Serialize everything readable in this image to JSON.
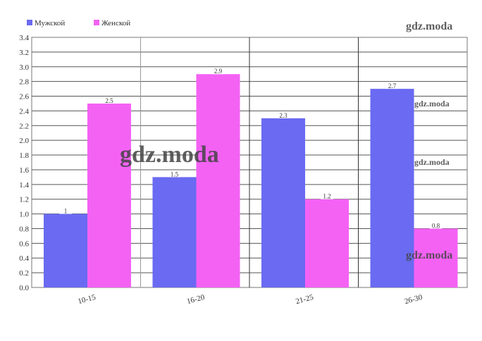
{
  "chart_data": {
    "type": "bar",
    "categories": [
      "10-15",
      "16-20",
      "21-25",
      "26-30"
    ],
    "series": [
      {
        "name": "Мужской",
        "color": "#6a6af2",
        "values": [
          1,
          1.5,
          2.3,
          2.7
        ]
      },
      {
        "name": "Женской",
        "color": "#f462f4",
        "values": [
          2.5,
          2.9,
          1.2,
          0.8
        ]
      }
    ],
    "ylim": [
      0,
      3.4
    ],
    "yticks": [
      {
        "value": 0,
        "label": "0.0"
      },
      0.2,
      0.4,
      0.6,
      0.8,
      {
        "value": 1,
        "label": "1.0"
      },
      1.2,
      1.4,
      1.6,
      1.8,
      {
        "value": 2,
        "label": "2.0"
      },
      2.2,
      2.4,
      2.6,
      2.8,
      {
        "value": 3,
        "label": "3.0"
      },
      3.2,
      3.4
    ],
    "grid": true,
    "watermarks": [
      "gdz.moda",
      "gdz.moda",
      "gdz.moda",
      "gdz.moda",
      "gdz.moda"
    ]
  }
}
